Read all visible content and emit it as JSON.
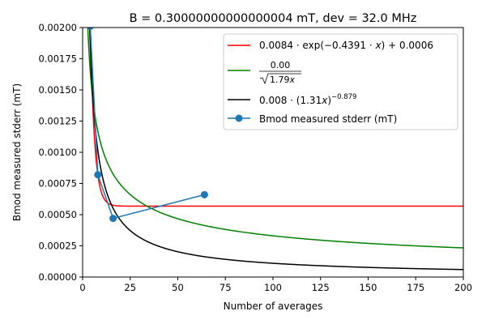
{
  "chart_data": {
    "type": "line",
    "title": "B = 0.30000000000000004 mT, dev = 32.0 MHz",
    "xlabel": "Number of averages",
    "ylabel": "Bmod measured stderr (mT)",
    "xlim": [
      0,
      200
    ],
    "ylim": [
      0,
      0.002
    ],
    "x_ticks": [
      "0",
      "25",
      "50",
      "75",
      "100",
      "125",
      "150",
      "175",
      "200"
    ],
    "y_ticks": [
      "0.00000",
      "0.00025",
      "0.00050",
      "0.00075",
      "0.00100",
      "0.00125",
      "0.00150",
      "0.00175",
      "0.00200"
    ],
    "grid": false,
    "legend_position": "top-right",
    "series": [
      {
        "name": "0.0084·exp(−0.4391·x) + 0.0006",
        "color": "#ff0000",
        "kind": "fit-exp",
        "params": {
          "a": 0.0084,
          "b": 0.4391,
          "c": 0.000568
        },
        "x_range": [
          1,
          200
        ]
      },
      {
        "name": "0.00 / √(1.79x)",
        "name_parts": {
          "numerator": "0.00",
          "denominator": "√1.79x"
        },
        "color": "#008000",
        "kind": "fit-sqrt",
        "params": {
          "a": 0.00442,
          "b": 1.79
        },
        "x_range": [
          1,
          200
        ]
      },
      {
        "name": "0.008·(1.31x)^−0.879",
        "name_parts": {
          "base": "0.008 · (1.31x)",
          "exponent": "−0.879"
        },
        "color": "#000000",
        "kind": "fit-power",
        "params": {
          "a": 0.008,
          "b": 1.31,
          "p": 0.879
        },
        "x_range": [
          1,
          200
        ]
      },
      {
        "name": "Bmod measured stderr (mT)",
        "color": "#1f77b4",
        "kind": "measured",
        "x": [
          4,
          8,
          16,
          64
        ],
        "y": [
          0.00201,
          0.00082,
          0.00047,
          0.00066
        ]
      }
    ],
    "legend_labels": {
      "red_prefix": "0.0084 · exp(−0.4391 · ",
      "red_x": "x",
      "red_suffix": ") + 0.0006",
      "green_num": "0.00",
      "green_den": "1.79",
      "green_x": "x",
      "black_base": "0.008 · (1.31",
      "black_x": "x",
      "black_close": ")",
      "black_exp": "−0.879",
      "blue": "Bmod measured stderr (mT)"
    }
  }
}
